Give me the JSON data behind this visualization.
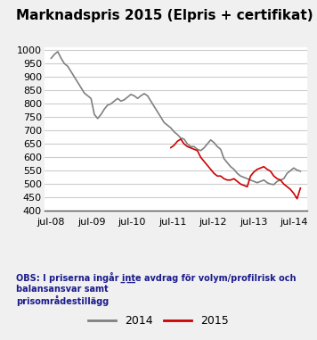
{
  "title": "Marknadspris 2015 (Elpris + certifikat)",
  "title_fontsize": 11,
  "ylabel": "",
  "xlabel": "",
  "ylim": [
    400,
    1010
  ],
  "yticks": [
    400,
    450,
    500,
    550,
    600,
    650,
    700,
    750,
    800,
    850,
    900,
    950,
    1000
  ],
  "xtick_labels": [
    "jul-08",
    "jul-09",
    "jul-10",
    "jul-11",
    "jul-12",
    "jul-13",
    "jul-14"
  ],
  "background_color": "#f0f0f0",
  "plot_bg_color": "#ffffff",
  "grid_color": "#cccccc",
  "line_color_2014": "#808080",
  "line_color_2015": "#cc0000",
  "obs_text": "OBS: I priserna ingår inte avdrag för volym/profilrisk och balansansvar samt\nprisområdestillägg",
  "legend_2014": "2014",
  "legend_2015": "2015",
  "series_2014_x": [
    0,
    1,
    2,
    3,
    4,
    5,
    6,
    7,
    8,
    9,
    10,
    11,
    12,
    13,
    14,
    15,
    16,
    17,
    18,
    19,
    20,
    21,
    22,
    23,
    24,
    25,
    26,
    27,
    28,
    29,
    30,
    31,
    32,
    33,
    34,
    35,
    36,
    37,
    38,
    39,
    40,
    41,
    42,
    43,
    44,
    45,
    46,
    47,
    48,
    49,
    50,
    51,
    52,
    53,
    54,
    55,
    56,
    57,
    58,
    59,
    60,
    61,
    62,
    63,
    64,
    65,
    66,
    67,
    68,
    69,
    70,
    71,
    72,
    73,
    74,
    75
  ],
  "series_2014_y": [
    970,
    985,
    995,
    970,
    950,
    940,
    920,
    900,
    880,
    860,
    840,
    830,
    820,
    760,
    745,
    760,
    780,
    795,
    800,
    810,
    820,
    810,
    815,
    825,
    835,
    830,
    820,
    830,
    838,
    830,
    810,
    790,
    770,
    750,
    730,
    720,
    710,
    695,
    685,
    672,
    668,
    650,
    640,
    640,
    630,
    625,
    635,
    650,
    665,
    655,
    640,
    630,
    595,
    580,
    565,
    555,
    540,
    530,
    525,
    520,
    515,
    510,
    505,
    510,
    515,
    505,
    500,
    498,
    510,
    515,
    520,
    540,
    550,
    560,
    552,
    548
  ],
  "series_2015_x": [
    36,
    37,
    38,
    39,
    40,
    41,
    42,
    43,
    44,
    45,
    46,
    47,
    48,
    49,
    50,
    51,
    52,
    53,
    54,
    55,
    56,
    57,
    58,
    59,
    60,
    61,
    62,
    63,
    64,
    65,
    66,
    67,
    68,
    69,
    70,
    71,
    72,
    73,
    74,
    75
  ],
  "series_2015_y": [
    636,
    645,
    660,
    668,
    650,
    640,
    635,
    630,
    625,
    600,
    585,
    570,
    555,
    540,
    530,
    530,
    520,
    515,
    515,
    520,
    510,
    500,
    495,
    490,
    530,
    545,
    555,
    560,
    565,
    555,
    548,
    530,
    520,
    515,
    500,
    490,
    480,
    465,
    445,
    485
  ]
}
